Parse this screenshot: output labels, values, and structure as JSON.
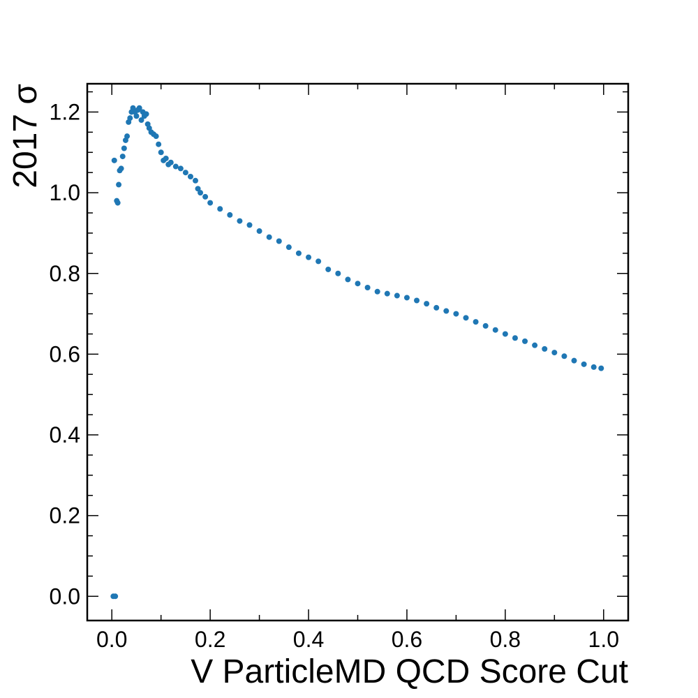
{
  "chart_data": {
    "type": "scatter",
    "xlabel": "V ParticleMD QCD Score Cut",
    "ylabel": "2017 σ",
    "color": "#1f77b4",
    "xlim": [
      -0.05,
      1.05
    ],
    "ylim": [
      -0.06,
      1.27
    ],
    "xticks": [
      {
        "value": 0,
        "label": "0.0"
      },
      0.2,
      0.4,
      0.6,
      0.8,
      {
        "value": 1,
        "label": "1.0"
      }
    ],
    "yticks": [
      {
        "value": 0,
        "label": "0.0"
      },
      0.2,
      0.4,
      0.6,
      0.8,
      {
        "value": 1,
        "label": "1.0"
      },
      1.2
    ],
    "xminorticks": [
      0.1,
      0.3,
      0.5,
      0.7,
      0.9
    ],
    "yminorticks": [
      0.05,
      0.1,
      0.15,
      0.25,
      0.3,
      0.35,
      0.45,
      0.5,
      0.55,
      0.65,
      0.7,
      0.75,
      0.85,
      0.9,
      0.95,
      1.05,
      1.1,
      1.15,
      1.25
    ],
    "x": [
      0.003,
      0.007,
      0.005,
      0.01,
      0.012,
      0.014,
      0.016,
      0.019,
      0.022,
      0.025,
      0.028,
      0.031,
      0.034,
      0.037,
      0.04,
      0.043,
      0.047,
      0.05,
      0.053,
      0.056,
      0.06,
      0.063,
      0.066,
      0.07,
      0.073,
      0.076,
      0.08,
      0.085,
      0.09,
      0.095,
      0.1,
      0.105,
      0.11,
      0.115,
      0.12,
      0.13,
      0.14,
      0.15,
      0.16,
      0.17,
      0.175,
      0.18,
      0.19,
      0.2,
      0.22,
      0.24,
      0.26,
      0.28,
      0.3,
      0.32,
      0.34,
      0.36,
      0.38,
      0.4,
      0.42,
      0.44,
      0.46,
      0.48,
      0.5,
      0.52,
      0.54,
      0.56,
      0.58,
      0.6,
      0.62,
      0.64,
      0.66,
      0.68,
      0.7,
      0.72,
      0.74,
      0.76,
      0.78,
      0.8,
      0.82,
      0.84,
      0.86,
      0.88,
      0.9,
      0.92,
      0.94,
      0.96,
      0.98,
      0.995
    ],
    "values": [
      0,
      0,
      1.08,
      0.98,
      0.975,
      1.02,
      1.055,
      1.06,
      1.09,
      1.11,
      1.13,
      1.14,
      1.175,
      1.185,
      1.2,
      1.21,
      1.2,
      1.19,
      1.205,
      1.21,
      1.18,
      1.2,
      1.19,
      1.195,
      1.17,
      1.16,
      1.15,
      1.145,
      1.14,
      1.12,
      1.1,
      1.08,
      1.085,
      1.07,
      1.075,
      1.065,
      1.06,
      1.05,
      1.04,
      1.03,
      1.01,
      1.0,
      0.99,
      0.975,
      0.96,
      0.945,
      0.93,
      0.92,
      0.905,
      0.89,
      0.88,
      0.865,
      0.85,
      0.84,
      0.83,
      0.81,
      0.8,
      0.785,
      0.775,
      0.765,
      0.755,
      0.75,
      0.745,
      0.74,
      0.733,
      0.725,
      0.715,
      0.707,
      0.7,
      0.69,
      0.68,
      0.67,
      0.66,
      0.65,
      0.64,
      0.632,
      0.622,
      0.613,
      0.604,
      0.595,
      0.584,
      0.575,
      0.568,
      0.565
    ]
  }
}
